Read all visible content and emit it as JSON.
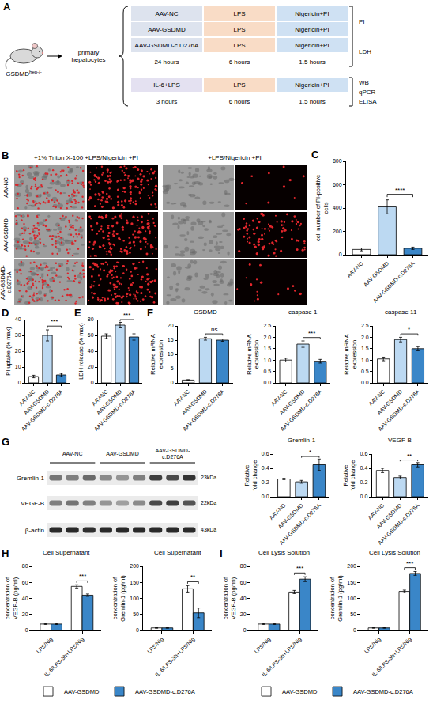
{
  "scheme": {
    "letter": "A",
    "mouse": {
      "label": "GSDMD",
      "superscript": "hep-/-"
    },
    "cells": "primary hepatocytes",
    "blocks": [
      {
        "rows": [
          [
            "AAV-NC",
            "LPS",
            "Nigericin+PI"
          ],
          [
            "AAV-GSDMD",
            "LPS",
            "Nigericin+PI"
          ],
          [
            "AAV-GSDMD-c.D276A",
            "LPS",
            "Nigericin+PI"
          ]
        ],
        "times": [
          "24 hours",
          "6 hours",
          "1.5 hours"
        ],
        "assays": [
          "PI",
          "LDH"
        ]
      },
      {
        "rows": [
          [
            "IL-6+LPS",
            "LPS",
            "Nigericin+PI"
          ]
        ],
        "times": [
          "3 hours",
          "6 hours",
          "1.5 hours"
        ],
        "assays": [
          "WB",
          "qPCR",
          "ELISA"
        ]
      }
    ]
  },
  "images": {
    "letter": "B",
    "columns": [
      "+1% Triton X-100 +LPS/Nigericin +PI",
      "+LPS/Nigericin +PI"
    ],
    "rows": [
      "AAV-NC",
      "AAV-GSDMD",
      "AAV-GSDMD-c.D276A"
    ]
  },
  "blot": {
    "letter": "G",
    "groups": [
      "AAV-NC",
      "AAV-GSDMD",
      "AAV-GSDMD-c.D276A"
    ],
    "bands": [
      {
        "name": "Gremlin-1",
        "size": "23kDa"
      },
      {
        "name": "VEGF-B",
        "size": "22kDa"
      },
      {
        "name": "β-actin",
        "size": "43kDa"
      }
    ]
  },
  "chart_data": [
    {
      "letter": "C",
      "charts": [
        {
          "type": "bar",
          "categories": [
            "AAV-NC",
            "AAV-GSDMD",
            "AAV-GSDMD-c.D276A"
          ],
          "values": [
            45,
            410,
            55
          ],
          "errors": [
            12,
            60,
            10
          ],
          "colors": [
            "#ffffff",
            "#bcd9f2",
            "#3a86c8"
          ],
          "y_label": "cell number of PI-positive cells",
          "ylim": [
            0,
            800
          ],
          "yticks": [
            0,
            200,
            400,
            600,
            800
          ],
          "grid": false,
          "significance": [
            {
              "between": [
                1,
                2
              ],
              "label": "****"
            }
          ]
        }
      ]
    },
    {
      "letter": "D",
      "charts": [
        {
          "type": "bar",
          "categories": [
            "AAV-NC",
            "AAV-GSDMD",
            "AAV-GSDMD-c.D276A"
          ],
          "values": [
            4,
            30,
            5
          ],
          "errors": [
            0.8,
            3.5,
            1
          ],
          "colors": [
            "#ffffff",
            "#bcd9f2",
            "#3a86c8"
          ],
          "y_label": "PI uptake (% max)",
          "ylim": [
            0,
            40
          ],
          "yticks": [
            0,
            10,
            20,
            30,
            40
          ],
          "grid": false,
          "significance": [
            {
              "between": [
                1,
                2
              ],
              "label": "***"
            }
          ]
        }
      ]
    },
    {
      "letter": "E",
      "charts": [
        {
          "type": "bar",
          "categories": [
            "AAV-NC",
            "AAV-GSDMD",
            "AAV-GSDMD-c.D276A"
          ],
          "values": [
            59,
            73,
            58
          ],
          "errors": [
            3,
            3.5,
            4
          ],
          "colors": [
            "#ffffff",
            "#bcd9f2",
            "#3a86c8"
          ],
          "y_label": "LDH release (% max)",
          "ylim": [
            0,
            80
          ],
          "yticks": [
            0,
            20,
            40,
            60,
            80
          ],
          "grid": false,
          "significance": [
            {
              "between": [
                1,
                2
              ],
              "label": "***"
            }
          ]
        }
      ]
    },
    {
      "letter": "F",
      "charts": [
        {
          "type": "bar",
          "title": "GSDMD",
          "categories": [
            "AAV-NC",
            "AAV-GSDMD",
            "AAV-GSDMD-c.D276A"
          ],
          "values": [
            1,
            15.5,
            15
          ],
          "errors": [
            0.15,
            0.5,
            0.4
          ],
          "colors": [
            "#ffffff",
            "#bcd9f2",
            "#3a86c8"
          ],
          "y_label": "Relative mRNA expression",
          "ylim": [
            0,
            20
          ],
          "yticks": [
            0,
            5,
            10,
            15,
            20
          ],
          "grid": false,
          "significance": [
            {
              "between": [
                1,
                2
              ],
              "label": "ns"
            }
          ]
        },
        {
          "type": "bar",
          "title": "caspase 1",
          "categories": [
            "AAV-NC",
            "AAV-GSDMD",
            "AAV-GSDMD-c.D276A"
          ],
          "values": [
            1.0,
            1.7,
            0.95
          ],
          "errors": [
            0.08,
            0.14,
            0.08
          ],
          "colors": [
            "#ffffff",
            "#bcd9f2",
            "#3a86c8"
          ],
          "y_label": "Relative mRNA expression",
          "ylim": [
            0,
            2.5
          ],
          "yticks": [
            {
              "value": 0,
              "label": "0.0"
            },
            0.5,
            {
              "value": 1,
              "label": "1.0"
            },
            1.5,
            {
              "value": 2,
              "label": "2.0"
            },
            2.5
          ],
          "grid": false,
          "significance": [
            {
              "between": [
                1,
                2
              ],
              "label": "***"
            }
          ]
        },
        {
          "type": "bar",
          "title": "caspase 11",
          "categories": [
            "AAV-NC",
            "AAV-GSDMD",
            "AAV-GSDMD-c.D276A"
          ],
          "values": [
            1.05,
            1.9,
            1.5
          ],
          "errors": [
            0.08,
            0.1,
            0.09
          ],
          "colors": [
            "#ffffff",
            "#bcd9f2",
            "#3a86c8"
          ],
          "y_label": "Relative mRNA expression",
          "ylim": [
            0,
            2.5
          ],
          "yticks": [
            {
              "value": 0,
              "label": "0.0"
            },
            0.5,
            {
              "value": 1,
              "label": "1.0"
            },
            1.5,
            {
              "value": 2,
              "label": "2.0"
            },
            2.5
          ],
          "grid": false,
          "significance": [
            {
              "between": [
                1,
                2
              ],
              "label": "*"
            }
          ]
        }
      ]
    },
    {
      "charts": [
        {
          "type": "bar",
          "title": "Gremlin-1",
          "categories": [
            "AAV-NC",
            "AAV-GSDMD",
            "AAV-GSDMD-c.D276A"
          ],
          "values": [
            0.25,
            0.21,
            0.45
          ],
          "errors": [
            0.01,
            0.02,
            0.08
          ],
          "colors": [
            "#ffffff",
            "#bcd9f2",
            "#3a86c8"
          ],
          "y_label": "Relative fold change",
          "ylim": [
            0,
            0.6
          ],
          "yticks": [
            {
              "value": 0,
              "label": "0.0"
            },
            0.2,
            0.4,
            0.6
          ],
          "grid": false,
          "significance": [
            {
              "between": [
                1,
                2
              ],
              "label": "*"
            }
          ]
        },
        {
          "type": "bar",
          "title": "VEGF-B",
          "categories": [
            "AAV-NC",
            "AAV-GSDMD",
            "AAV-GSDMD-c.D276A"
          ],
          "values": [
            0.37,
            0.27,
            0.45
          ],
          "errors": [
            0.03,
            0.02,
            0.03
          ],
          "colors": [
            "#ffffff",
            "#bcd9f2",
            "#3a86c8"
          ],
          "y_label": "Relative fold change",
          "ylim": [
            0,
            0.6
          ],
          "yticks": [
            {
              "value": 0,
              "label": "0.0"
            },
            0.2,
            0.4,
            0.6
          ],
          "grid": false,
          "significance": [
            {
              "between": [
                1,
                2
              ],
              "label": "**"
            }
          ]
        }
      ]
    },
    {
      "letter": "H",
      "charts": [
        {
          "type": "bar",
          "title": "Cell Supernatant",
          "categories": [
            "LPS/Nig",
            "IL-6/LPS-3h+LPS/Nig"
          ],
          "series": [
            {
              "name": "AAV-GSDMD",
              "color": "#ffffff",
              "values": [
                8,
                55
              ],
              "errors": [
                0.5,
                2
              ]
            },
            {
              "name": "AAV-GSDMD-c.D276A",
              "color": "#3a86c8",
              "values": [
                8,
                44
              ],
              "errors": [
                0.5,
                1.5
              ]
            }
          ],
          "y_label": "concentration of VEGF-B (pg/ml)",
          "ylim": [
            0,
            80
          ],
          "yticks": [
            0,
            20,
            40,
            60,
            80
          ],
          "grid": false,
          "legend": "bottom",
          "significance": [
            {
              "category": 1,
              "label": "***"
            }
          ]
        },
        {
          "type": "bar",
          "title": "Cell Supernatant",
          "categories": [
            "LPS/Nig",
            "IL-6/LPS-3h+LPS/Nig"
          ],
          "series": [
            {
              "name": "AAV-GSDMD",
              "color": "#ffffff",
              "values": [
                8,
                130
              ],
              "errors": [
                1,
                10
              ]
            },
            {
              "name": "AAV-GSDMD-c.D276A",
              "color": "#3a86c8",
              "values": [
                8,
                55
              ],
              "errors": [
                1,
                15
              ]
            }
          ],
          "y_label": "concentration of Gremlin-1 (pg/ml)",
          "ylim": [
            0,
            200
          ],
          "yticks": [
            0,
            50,
            100,
            150,
            200
          ],
          "grid": false,
          "significance": [
            {
              "category": 1,
              "label": "**"
            }
          ]
        }
      ]
    },
    {
      "letter": "I",
      "charts": [
        {
          "type": "bar",
          "title": "Cell Lysis Solution",
          "categories": [
            "LPS/Nig",
            "IL-6/LPS-3h+LPS/Nig"
          ],
          "series": [
            {
              "name": "AAV-GSDMD",
              "color": "#ffffff",
              "values": [
                8,
                48
              ],
              "errors": [
                0.5,
                2
              ]
            },
            {
              "name": "AAV-GSDMD-c.D276A",
              "color": "#3a86c8",
              "values": [
                8,
                64
              ],
              "errors": [
                0.5,
                3
              ]
            }
          ],
          "y_label": "concentration of VEGF-B (pg/ml)",
          "ylim": [
            0,
            80
          ],
          "yticks": [
            0,
            20,
            40,
            60,
            80
          ],
          "grid": false,
          "legend": "bottom",
          "significance": [
            {
              "category": 1,
              "label": "***"
            }
          ]
        },
        {
          "type": "bar",
          "title": "Cell Lysis Solution",
          "categories": [
            "LPS/Nig",
            "IL-6/LPS-3h+LPS/Nig"
          ],
          "series": [
            {
              "name": "AAV-GSDMD",
              "color": "#ffffff",
              "values": [
                8,
                122
              ],
              "errors": [
                1,
                4
              ]
            },
            {
              "name": "AAV-GSDMD-c.D276A",
              "color": "#3a86c8",
              "values": [
                8,
                178
              ],
              "errors": [
                1,
                6
              ]
            }
          ],
          "y_label": "concentration of Gremlin-1 (pg/ml)",
          "ylim": [
            0,
            200
          ],
          "yticks": [
            0,
            50,
            100,
            150,
            200
          ],
          "grid": false,
          "significance": [
            {
              "category": 1,
              "label": "***"
            }
          ]
        }
      ]
    }
  ]
}
